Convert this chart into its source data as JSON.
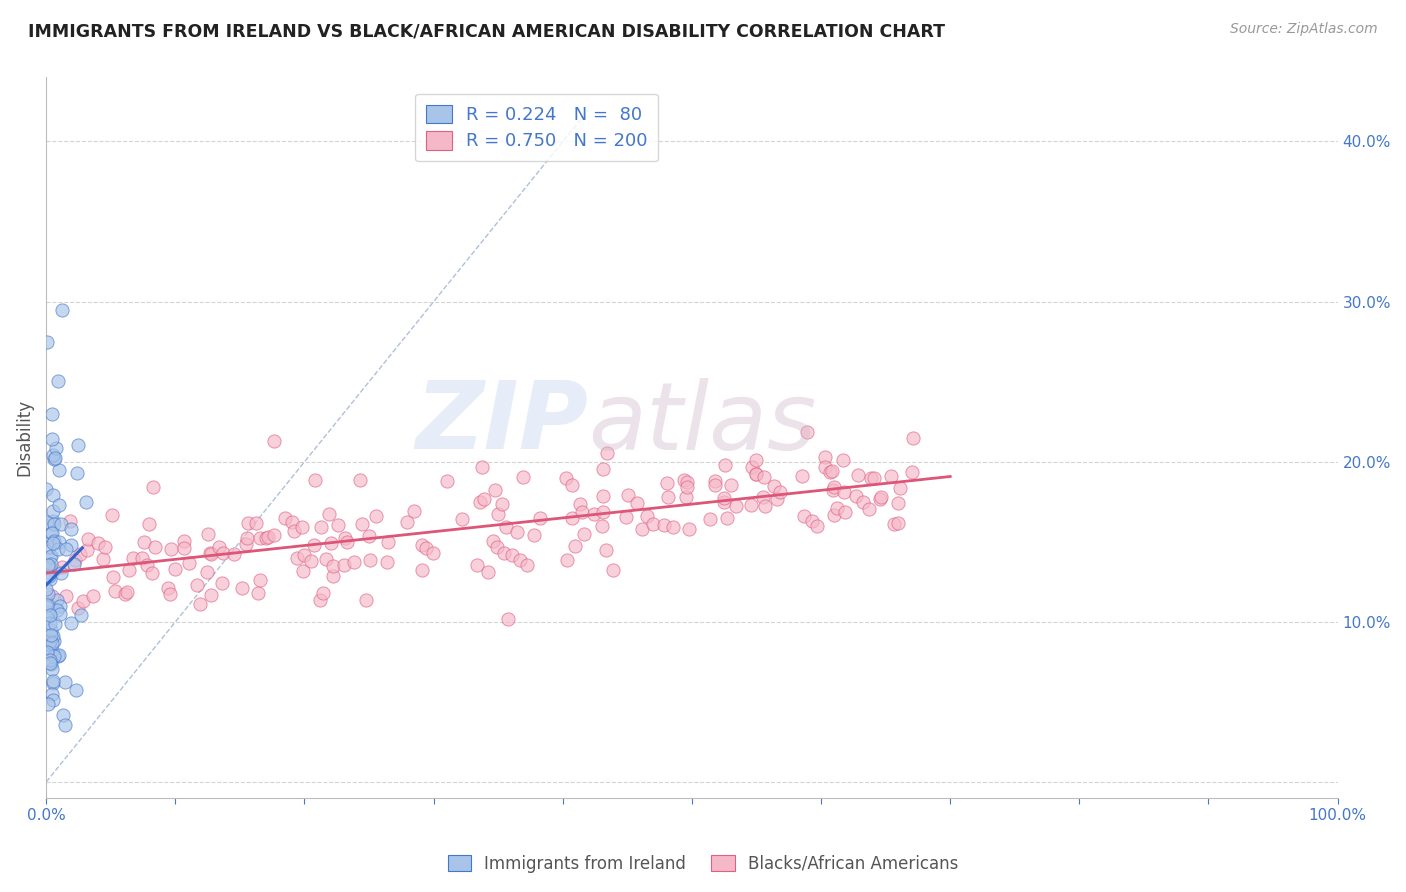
{
  "title": "IMMIGRANTS FROM IRELAND VS BLACK/AFRICAN AMERICAN DISABILITY CORRELATION CHART",
  "source": "Source: ZipAtlas.com",
  "ylabel": "Disability",
  "xlim": [
    0.0,
    1.0
  ],
  "ylim": [
    -0.01,
    0.44
  ],
  "xticks": [
    0.0,
    0.1,
    0.2,
    0.3,
    0.4,
    0.5,
    0.6,
    0.7,
    0.8,
    0.9,
    1.0
  ],
  "yticks": [
    0.0,
    0.1,
    0.2,
    0.3,
    0.4
  ],
  "ytick_labels": [
    "",
    "10.0%",
    "20.0%",
    "30.0%",
    "40.0%"
  ],
  "xtick_labels": [
    "0.0%",
    "",
    "",
    "",
    "",
    "",
    "",
    "",
    "",
    "",
    "100.0%"
  ],
  "blue_R": 0.224,
  "blue_N": 80,
  "pink_R": 0.75,
  "pink_N": 200,
  "blue_fill": "#a8c4e8",
  "blue_edge": "#4477cc",
  "pink_fill": "#f5b8c8",
  "pink_edge": "#e06080",
  "blue_line": "#3366cc",
  "pink_line": "#dd5577",
  "legend_label_blue": "Immigrants from Ireland",
  "legend_label_pink": "Blacks/African Americans",
  "watermark_zip": "ZIP",
  "watermark_atlas": "atlas",
  "background_color": "#ffffff",
  "grid_color": "#d0d0d0",
  "title_color": "#222222",
  "axis_label_color": "#555555",
  "tick_color": "#4477cc",
  "diag_color": "#b0c0d8"
}
